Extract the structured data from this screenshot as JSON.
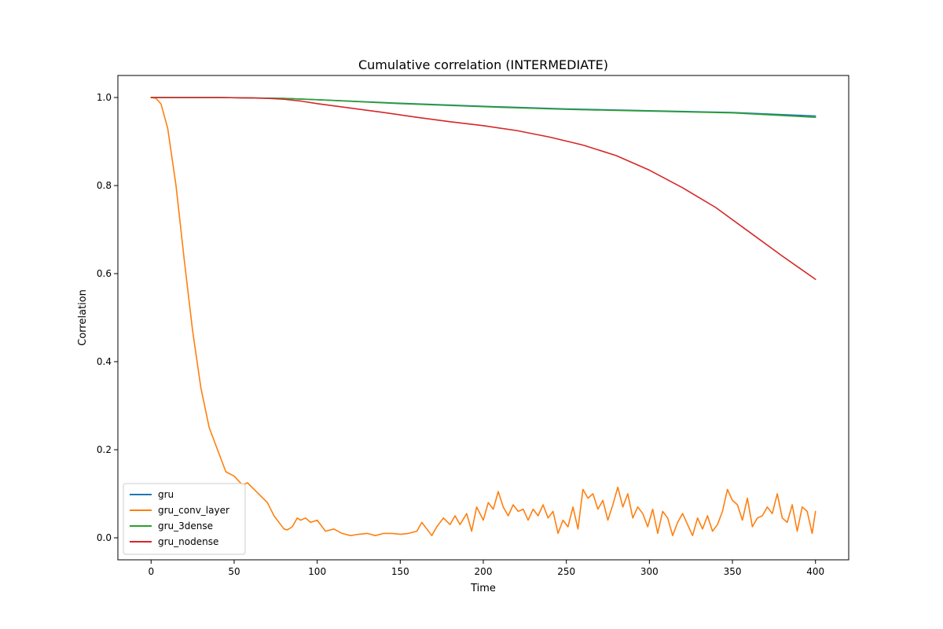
{
  "chart_data": {
    "type": "line",
    "title": "Cumulative correlation (INTERMEDIATE)",
    "xlabel": "Time",
    "ylabel": "Correlation",
    "xlim": [
      -20,
      420
    ],
    "ylim": [
      -0.05,
      1.05
    ],
    "xticks": [
      0,
      50,
      100,
      150,
      200,
      250,
      300,
      350,
      400
    ],
    "yticks": [
      0.0,
      0.2,
      0.4,
      0.6,
      0.8,
      1.0
    ],
    "grid": false,
    "legend_position": "lower-left",
    "series": [
      {
        "name": "gru",
        "color": "#1f77b4",
        "x": [
          0,
          40,
          60,
          80,
          100,
          150,
          200,
          250,
          300,
          350,
          400
        ],
        "y": [
          1.0,
          1.0,
          0.999,
          0.998,
          0.995,
          0.987,
          0.98,
          0.974,
          0.97,
          0.966,
          0.958
        ]
      },
      {
        "name": "gru_conv_layer",
        "color": "#ff7f0e",
        "x": [
          0,
          3,
          6,
          10,
          15,
          20,
          25,
          30,
          35,
          40,
          45,
          50,
          55,
          58,
          62,
          66,
          70,
          74,
          78,
          80,
          82,
          85,
          88,
          90,
          93,
          96,
          100,
          105,
          110,
          115,
          120,
          125,
          130,
          135,
          140,
          145,
          150,
          155,
          160,
          163,
          166,
          169,
          172,
          176,
          180,
          183,
          186,
          190,
          193,
          196,
          200,
          203,
          206,
          209,
          212,
          215,
          218,
          221,
          224,
          227,
          230,
          233,
          236,
          239,
          242,
          245,
          248,
          251,
          254,
          257,
          260,
          263,
          266,
          269,
          272,
          275,
          278,
          281,
          284,
          287,
          290,
          293,
          296,
          299,
          302,
          305,
          308,
          311,
          314,
          317,
          320,
          323,
          326,
          329,
          332,
          335,
          338,
          341,
          344,
          347,
          350,
          353,
          356,
          359,
          362,
          365,
          368,
          371,
          374,
          377,
          380,
          383,
          386,
          389,
          392,
          395,
          398,
          400
        ],
        "y": [
          1.0,
          0.998,
          0.985,
          0.93,
          0.8,
          0.63,
          0.47,
          0.34,
          0.25,
          0.2,
          0.15,
          0.14,
          0.12,
          0.125,
          0.11,
          0.095,
          0.08,
          0.05,
          0.03,
          0.02,
          0.018,
          0.025,
          0.045,
          0.04,
          0.045,
          0.035,
          0.04,
          0.015,
          0.02,
          0.01,
          0.005,
          0.008,
          0.01,
          0.005,
          0.01,
          0.01,
          0.008,
          0.01,
          0.015,
          0.035,
          0.02,
          0.005,
          0.025,
          0.045,
          0.03,
          0.05,
          0.03,
          0.055,
          0.015,
          0.07,
          0.04,
          0.08,
          0.065,
          0.105,
          0.07,
          0.05,
          0.075,
          0.06,
          0.065,
          0.04,
          0.065,
          0.05,
          0.075,
          0.045,
          0.06,
          0.01,
          0.04,
          0.025,
          0.07,
          0.02,
          0.11,
          0.09,
          0.1,
          0.065,
          0.085,
          0.04,
          0.075,
          0.115,
          0.07,
          0.1,
          0.045,
          0.07,
          0.055,
          0.025,
          0.065,
          0.01,
          0.06,
          0.045,
          0.005,
          0.035,
          0.055,
          0.03,
          0.005,
          0.045,
          0.02,
          0.05,
          0.015,
          0.03,
          0.06,
          0.11,
          0.085,
          0.075,
          0.04,
          0.09,
          0.025,
          0.045,
          0.05,
          0.07,
          0.055,
          0.1,
          0.045,
          0.035,
          0.075,
          0.015,
          0.07,
          0.06,
          0.01,
          0.06
        ]
      },
      {
        "name": "gru_3dense",
        "color": "#2ca02c",
        "x": [
          0,
          40,
          60,
          80,
          100,
          150,
          200,
          250,
          300,
          350,
          400
        ],
        "y": [
          1.0,
          1.0,
          0.999,
          0.998,
          0.995,
          0.986,
          0.979,
          0.973,
          0.969,
          0.965,
          0.955
        ]
      },
      {
        "name": "gru_nodense",
        "color": "#d62728",
        "x": [
          0,
          40,
          60,
          70,
          80,
          90,
          100,
          120,
          140,
          160,
          180,
          200,
          220,
          240,
          260,
          280,
          300,
          320,
          340,
          360,
          380,
          400
        ],
        "y": [
          1.0,
          1.0,
          0.999,
          0.998,
          0.996,
          0.992,
          0.986,
          0.976,
          0.966,
          0.955,
          0.945,
          0.936,
          0.925,
          0.91,
          0.892,
          0.868,
          0.835,
          0.795,
          0.75,
          0.695,
          0.64,
          0.587
        ]
      }
    ]
  }
}
